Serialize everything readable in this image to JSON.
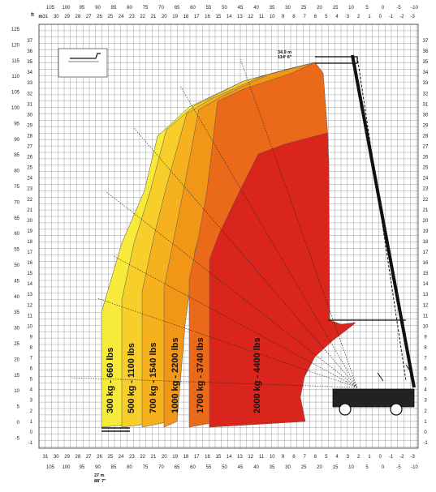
{
  "chart_data": {
    "type": "diagram",
    "title": "",
    "axes": {
      "top_ft_ticks": [
        "105",
        "100",
        "95",
        "90",
        "85",
        "80",
        "75",
        "70",
        "65",
        "60",
        "55",
        "50",
        "45",
        "40",
        "35",
        "30",
        "25",
        "20",
        "15",
        "10",
        "5",
        "0",
        "-5",
        "-10"
      ],
      "top_ft_unit": "ft",
      "m_unit": "m",
      "bottom_ft_ticks": [
        "105",
        "100",
        "95",
        "90",
        "85",
        "80",
        "75",
        "70",
        "65",
        "60",
        "55",
        "50",
        "45",
        "40",
        "35",
        "30",
        "25",
        "20",
        "15",
        "10",
        "5",
        "0",
        "-5",
        "-10"
      ],
      "m_ticks": [
        "31",
        "30",
        "29",
        "28",
        "27",
        "26",
        "25",
        "24",
        "23",
        "22",
        "21",
        "20",
        "19",
        "18",
        "17",
        "16",
        "15",
        "14",
        "13",
        "12",
        "11",
        "10",
        "9",
        "8",
        "7",
        "6",
        "5",
        "4",
        "3",
        "2",
        "1",
        "0",
        "-1",
        "-2",
        "-3"
      ],
      "left_ft_ticks": [
        "125",
        "120",
        "115",
        "110",
        "105",
        "100",
        "95",
        "90",
        "85",
        "80",
        "75",
        "70",
        "65",
        "60",
        "55",
        "50",
        "45",
        "40",
        "35",
        "30",
        "25",
        "20",
        "15",
        "10",
        "5",
        "0",
        "-5"
      ],
      "left_m_ticks": [
        "37",
        "36",
        "35",
        "34",
        "33",
        "32",
        "31",
        "30",
        "29",
        "28",
        "27",
        "26",
        "25",
        "24",
        "23",
        "22",
        "21",
        "20",
        "19",
        "18",
        "17",
        "16",
        "15",
        "14",
        "13",
        "12",
        "11",
        "10",
        "9",
        "8",
        "7",
        "6",
        "5",
        "4",
        "3",
        "2",
        "1",
        "0",
        "-1"
      ],
      "right_m_ticks": [
        "37",
        "36",
        "35",
        "34",
        "33",
        "32",
        "31",
        "30",
        "29",
        "28",
        "27",
        "26",
        "25",
        "24",
        "23",
        "22",
        "21",
        "20",
        "19",
        "18",
        "17",
        "16",
        "15",
        "14",
        "13",
        "12",
        "11",
        "10",
        "9",
        "8",
        "7",
        "6",
        "5",
        "4",
        "3",
        "2",
        "1",
        "0",
        "-1"
      ]
    },
    "zones": [
      {
        "label": "300 kg - 660 lbs",
        "color": "#f7ea3a"
      },
      {
        "label": "500 kg - 1100 lbs",
        "color": "#f8cf2a"
      },
      {
        "label": "700 kg - 1540 lbs",
        "color": "#f6b21e"
      },
      {
        "label": "1000 kg - 2200 lbs",
        "color": "#f29617"
      },
      {
        "label": "1700 kg - 3740 lbs",
        "color": "#ea6a1a"
      },
      {
        "label": "2000 kg - 4400 lbs",
        "color": "#d9251c"
      }
    ],
    "annotations": {
      "max_height": [
        "34,9 m",
        "114' 6\""
      ],
      "max_reach": [
        "27 m",
        "88' 7\""
      ]
    }
  }
}
